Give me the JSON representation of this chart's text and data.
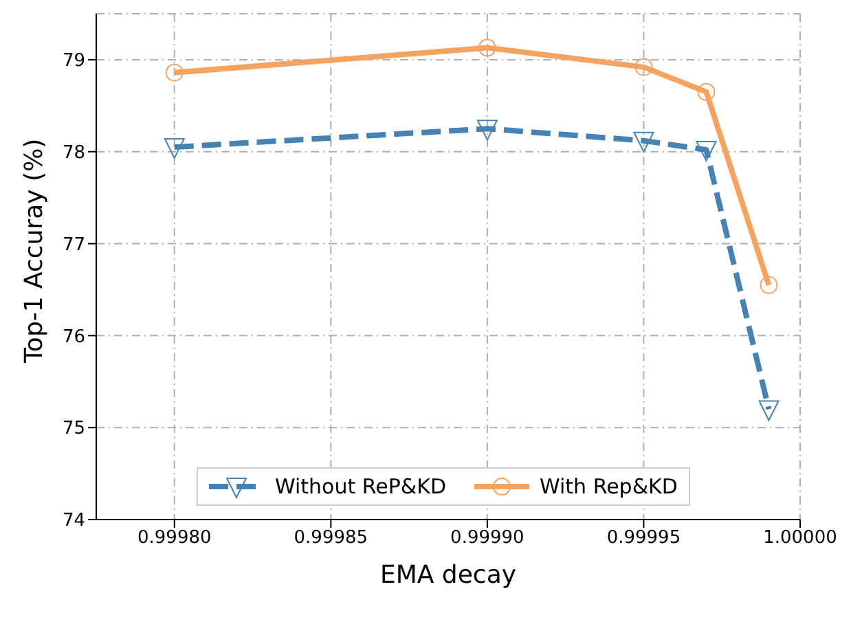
{
  "chart_data": {
    "type": "line",
    "xlabel": "EMA decay",
    "ylabel": "Top-1 Accuray (%)",
    "x": [
      0.9998,
      0.9999,
      0.99995,
      0.99997,
      0.99999
    ],
    "series": [
      {
        "name": "Without ReP&KD",
        "color": "#4682b4",
        "values": [
          78.05,
          78.25,
          78.12,
          78.02,
          75.2
        ],
        "marker": "triangle",
        "line_style": "dashed"
      },
      {
        "name": "With Rep&KD",
        "color": "#f4a460",
        "values": [
          78.86,
          79.13,
          78.92,
          78.65,
          76.55
        ],
        "marker": "circle",
        "line_style": "solid"
      }
    ],
    "xlim": [
      0.999775,
      1.0
    ],
    "xticks": [
      {
        "value": 0.9998,
        "label": "0.99980"
      },
      {
        "value": 0.99985,
        "label": "0.99985"
      },
      {
        "value": 0.9999,
        "label": "0.99990"
      },
      {
        "value": 0.99995,
        "label": "0.99995"
      },
      {
        "value": 1.0,
        "label": "1.00000"
      }
    ],
    "ylim": [
      74,
      79.5
    ],
    "yticks": [
      74,
      75,
      76,
      77,
      78,
      79
    ],
    "grid": true,
    "legend": "bottom"
  }
}
